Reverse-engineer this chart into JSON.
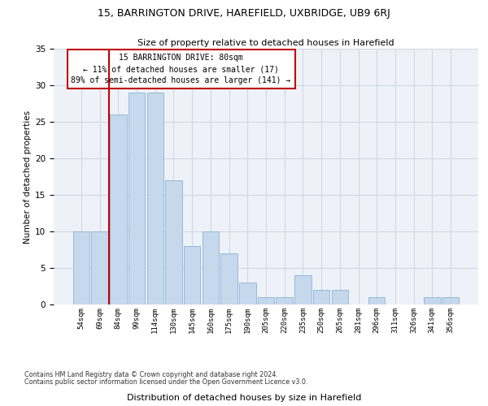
{
  "title": "15, BARRINGTON DRIVE, HAREFIELD, UXBRIDGE, UB9 6RJ",
  "subtitle": "Size of property relative to detached houses in Harefield",
  "xlabel_bottom": "Distribution of detached houses by size in Harefield",
  "ylabel": "Number of detached properties",
  "categories": [
    "54sqm",
    "69sqm",
    "84sqm",
    "99sqm",
    "114sqm",
    "130sqm",
    "145sqm",
    "160sqm",
    "175sqm",
    "190sqm",
    "205sqm",
    "220sqm",
    "235sqm",
    "250sqm",
    "265sqm",
    "281sqm",
    "296sqm",
    "311sqm",
    "326sqm",
    "341sqm",
    "356sqm"
  ],
  "values": [
    10,
    10,
    26,
    29,
    29,
    17,
    8,
    10,
    7,
    3,
    1,
    1,
    4,
    2,
    2,
    0,
    1,
    0,
    0,
    1,
    1
  ],
  "bar_color": "#c5d8ec",
  "bar_edge_color": "#8ab4d4",
  "highlight_color": "#c00000",
  "annotation_box_text": "15 BARRINGTON DRIVE: 80sqm\n← 11% of detached houses are smaller (17)\n89% of semi-detached houses are larger (141) →",
  "annotation_box_color": "white",
  "annotation_box_edge_color": "#c00000",
  "ylim": [
    0,
    35
  ],
  "yticks": [
    0,
    5,
    10,
    15,
    20,
    25,
    30,
    35
  ],
  "grid_color": "#d0d8e4",
  "bg_color": "#eef2f8",
  "footer_line1": "Contains HM Land Registry data © Crown copyright and database right 2024.",
  "footer_line2": "Contains public sector information licensed under the Open Government Licence v3.0."
}
